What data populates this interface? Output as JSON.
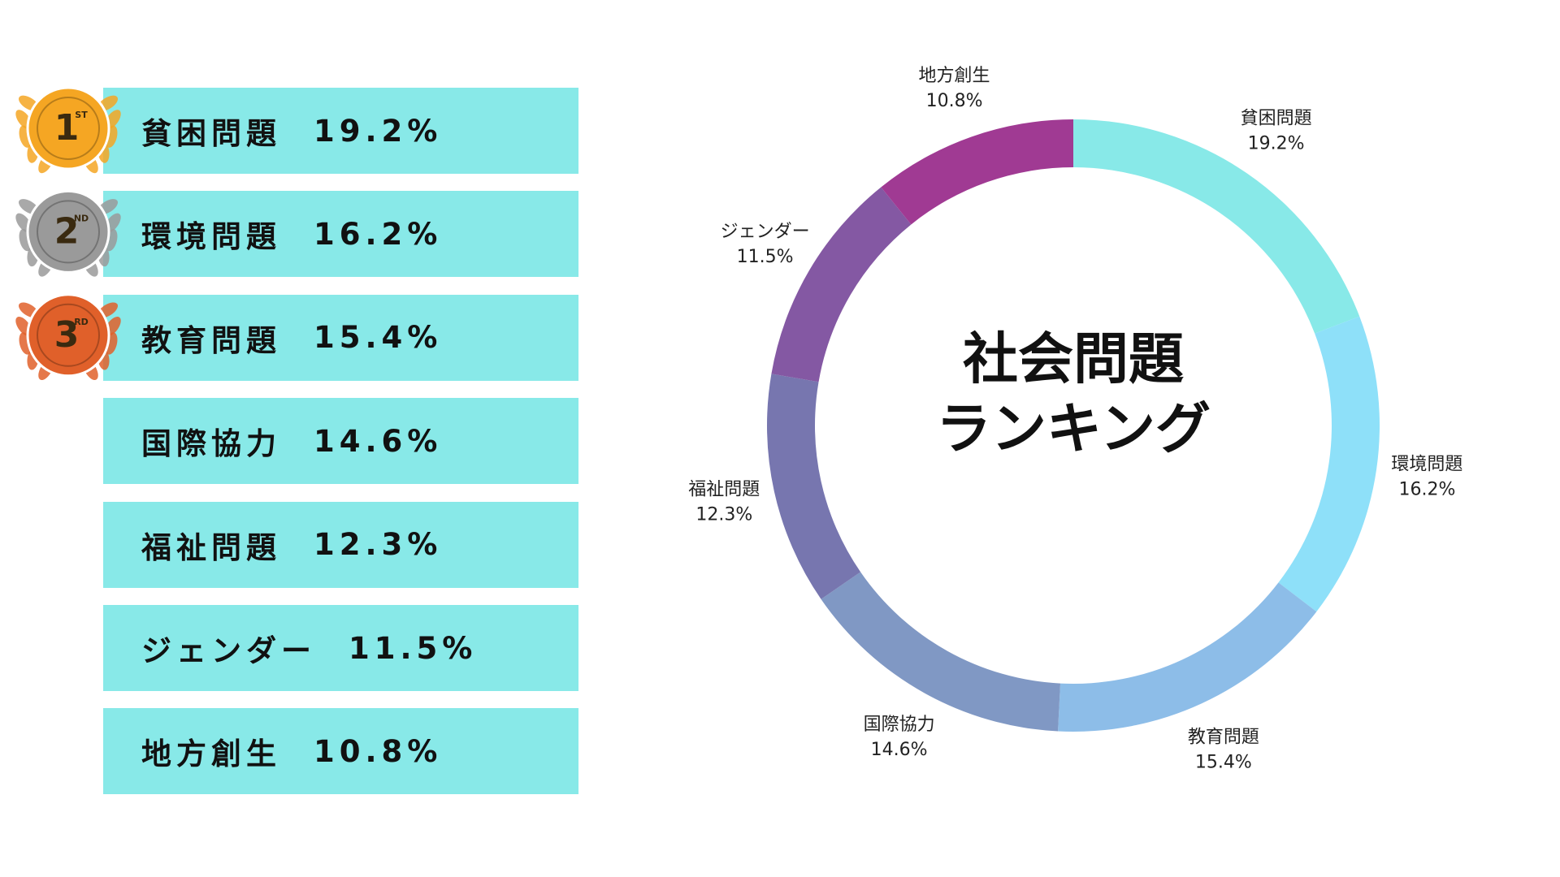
{
  "chart_data": {
    "type": "pie",
    "title": [
      "社会問題",
      "ランキング"
    ],
    "categories": [
      "貧困問題",
      "環境問題",
      "教育問題",
      "国際協力",
      "福祉問題",
      "ジェンダー",
      "地方創生"
    ],
    "values": [
      19.2,
      16.2,
      15.4,
      14.6,
      12.3,
      11.5,
      10.8
    ],
    "value_labels": [
      "19.2%",
      "16.2%",
      "15.4%",
      "14.6%",
      "12.3%",
      "11.5%",
      "10.8%"
    ],
    "colors": [
      "#88e9e8",
      "#8ee0f9",
      "#8dbde8",
      "#8098c4",
      "#7776af",
      "#8458a3",
      "#a03a93"
    ],
    "donut": true
  },
  "medals": [
    {
      "number": "1",
      "suffix": "ST",
      "color": "#f5a623"
    },
    {
      "number": "2",
      "suffix": "ND",
      "color": "#9a9a9a"
    },
    {
      "number": "3",
      "suffix": "RD",
      "color": "#e0602a"
    }
  ]
}
